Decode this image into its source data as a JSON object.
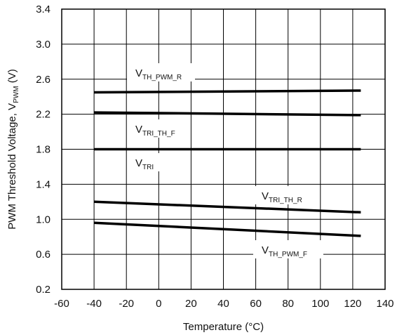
{
  "chart_data": {
    "type": "line",
    "xlabel": "Temperature (°C)",
    "ylabel": {
      "main": "PWM Threshold Voltage, V",
      "sub": "PWM",
      "suffix": " (V)"
    },
    "xlim": [
      -60,
      140
    ],
    "ylim": [
      0.2,
      3.4
    ],
    "xticks": [
      "-60",
      "-40",
      "-20",
      "0",
      "20",
      "40",
      "60",
      "80",
      "100",
      "120",
      "140"
    ],
    "yticks": [
      "0.2",
      "0.6",
      "1.0",
      "1.4",
      "1.8",
      "2.2",
      "2.6",
      "3.0",
      "3.4"
    ],
    "grid": true,
    "series": [
      {
        "label": {
          "main": "V",
          "sub": "TH_PWM_R"
        },
        "points": [
          [
            -40,
            2.45
          ],
          [
            125,
            2.47
          ]
        ]
      },
      {
        "label": {
          "main": "V",
          "sub": "TRI_TH_F"
        },
        "points": [
          [
            -40,
            2.22
          ],
          [
            125,
            2.19
          ]
        ]
      },
      {
        "label": {
          "main": "V",
          "sub": "TRI"
        },
        "points": [
          [
            -40,
            1.8
          ],
          [
            125,
            1.8
          ]
        ]
      },
      {
        "label": {
          "main": "V",
          "sub": "TRI_TH_R"
        },
        "points": [
          [
            -40,
            1.2
          ],
          [
            125,
            1.08
          ]
        ]
      },
      {
        "label": {
          "main": "V",
          "sub": "TH_PWM_F"
        },
        "points": [
          [
            -40,
            0.96
          ],
          [
            125,
            0.81
          ]
        ]
      }
    ]
  }
}
